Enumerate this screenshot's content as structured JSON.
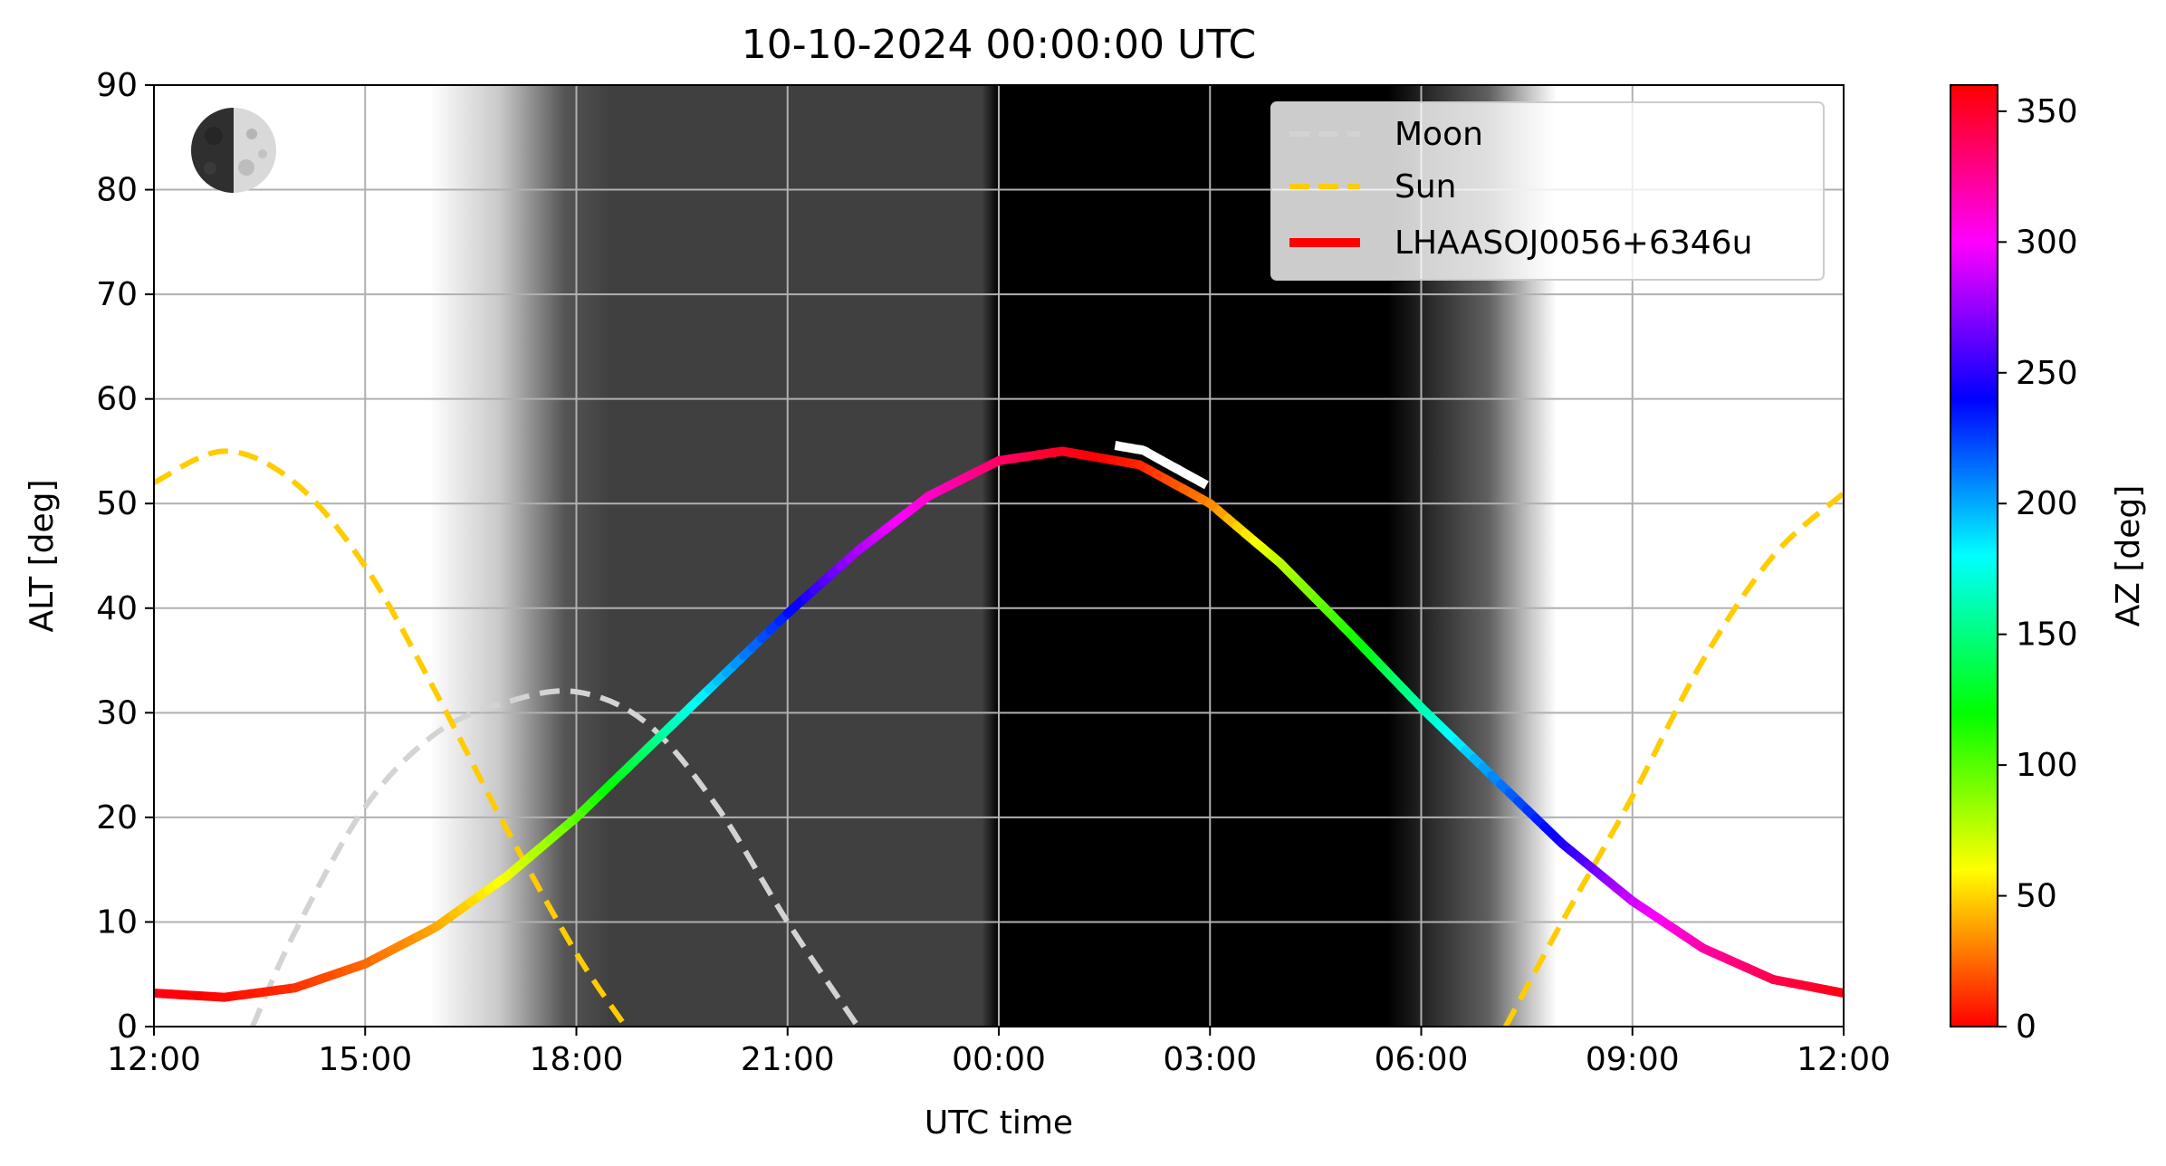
{
  "chart_data": {
    "type": "line",
    "title": "10-10-2024 00:00:00 UTC",
    "xlabel": "UTC time",
    "ylabel": "ALT [deg]",
    "colorbar_label": "AZ [deg]",
    "x_range_hours": [
      0,
      24
    ],
    "x_ticks": [
      "12:00",
      "15:00",
      "18:00",
      "21:00",
      "00:00",
      "03:00",
      "06:00",
      "09:00",
      "12:00"
    ],
    "ylim": [
      0,
      90
    ],
    "y_ticks": [
      "0",
      "10",
      "20",
      "30",
      "40",
      "50",
      "60",
      "70",
      "80",
      "90"
    ],
    "colorbar_range": [
      0,
      360
    ],
    "colorbar_ticks": [
      "0",
      "50",
      "100",
      "150",
      "200",
      "250",
      "300",
      "350"
    ],
    "grid": true,
    "legend_position": "top-right",
    "moon_phase_icon": "waxing-half-moon",
    "night_shading": [
      {
        "start": 6.0,
        "end": 12.0,
        "level": "twilight-gray"
      },
      {
        "start": 12.0,
        "end": 17.8,
        "level": "night-black"
      },
      {
        "start": 17.8,
        "end": 19.9,
        "level": "twilight-gray"
      }
    ],
    "series": [
      {
        "name": "Moon",
        "style": "dashed",
        "color": "#d3d3d3",
        "points": [
          [
            1.4,
            0
          ],
          [
            2,
            9
          ],
          [
            3,
            21
          ],
          [
            4,
            28
          ],
          [
            5,
            31
          ],
          [
            6,
            32
          ],
          [
            7,
            29
          ],
          [
            8,
            21
          ],
          [
            9,
            10
          ],
          [
            10,
            0
          ]
        ]
      },
      {
        "name": "Sun",
        "style": "dashed",
        "color": "#ffcc00",
        "segments": [
          [
            [
              0,
              52
            ],
            [
              1,
              55
            ],
            [
              2,
              52
            ],
            [
              3,
              44
            ],
            [
              4,
              32
            ],
            [
              5,
              19
            ],
            [
              6,
              7
            ],
            [
              6.7,
              0
            ]
          ],
          [
            [
              19.2,
              0
            ],
            [
              20,
              10
            ],
            [
              21,
              22
            ],
            [
              22,
              35
            ],
            [
              23,
              45
            ],
            [
              24,
              51
            ]
          ]
        ]
      },
      {
        "name": "LHAASOJ0056+6346u",
        "style": "solid",
        "color_by": "az",
        "points": [
          {
            "t": 0,
            "alt": 3.2,
            "az": 355
          },
          {
            "t": 1,
            "alt": 2.8,
            "az": 2
          },
          {
            "t": 2,
            "alt": 3.7,
            "az": 11
          },
          {
            "t": 3,
            "alt": 6,
            "az": 24
          },
          {
            "t": 4,
            "alt": 9.5,
            "az": 39
          },
          {
            "t": 5,
            "alt": 14.3,
            "az": 62
          },
          {
            "t": 6,
            "alt": 20,
            "az": 98
          },
          {
            "t": 7,
            "alt": 26.5,
            "az": 145
          },
          {
            "t": 8,
            "alt": 33,
            "az": 192
          },
          {
            "t": 9,
            "alt": 39.5,
            "az": 235
          },
          {
            "t": 10,
            "alt": 45.5,
            "az": 280
          },
          {
            "t": 11,
            "alt": 50.7,
            "az": 312
          },
          {
            "t": 12,
            "alt": 54.1,
            "az": 335
          },
          {
            "t": 12.9,
            "alt": 55,
            "az": 352
          },
          {
            "t": 14,
            "alt": 53.7,
            "az": 8
          },
          {
            "t": 15,
            "alt": 50,
            "az": 30
          },
          {
            "t": 16,
            "alt": 44.3,
            "az": 75
          },
          {
            "t": 17,
            "alt": 37.5,
            "az": 112
          },
          {
            "t": 18,
            "alt": 30.5,
            "az": 160
          },
          {
            "t": 19,
            "alt": 24,
            "az": 205
          },
          {
            "t": 20,
            "alt": 17.5,
            "az": 245
          },
          {
            "t": 21,
            "alt": 12,
            "az": 288
          },
          {
            "t": 22,
            "alt": 7.5,
            "az": 320
          },
          {
            "t": 23,
            "alt": 4.5,
            "az": 342
          },
          {
            "t": 24,
            "alt": 3.2,
            "az": 355
          }
        ]
      }
    ]
  }
}
